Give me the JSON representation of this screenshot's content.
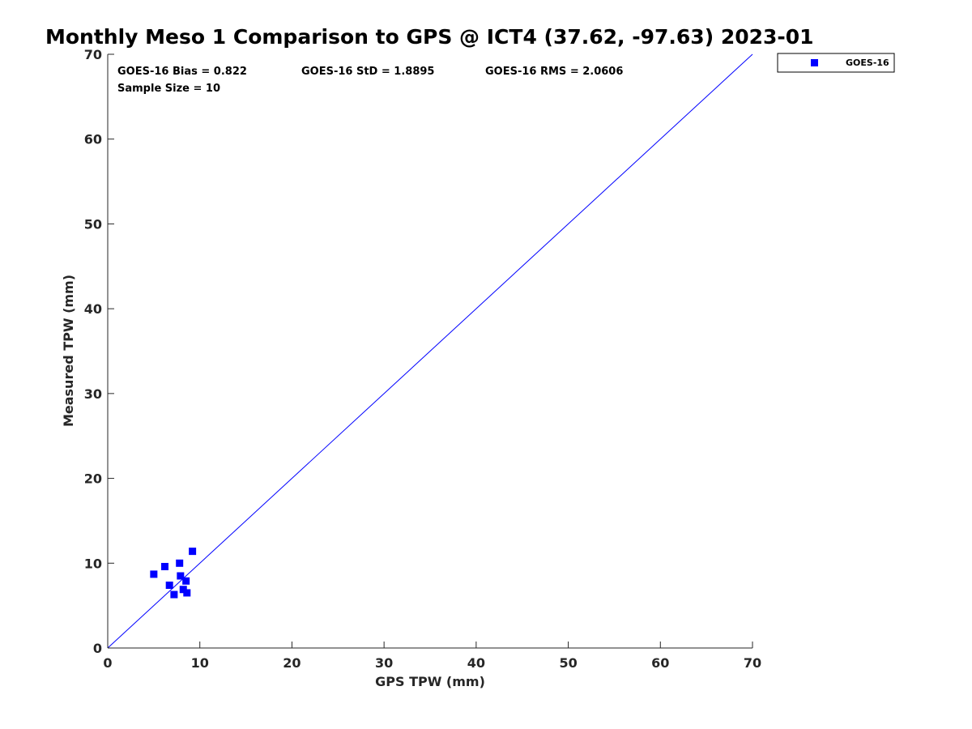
{
  "chart_data": {
    "type": "scatter",
    "title": "Monthly Meso 1 Comparison to GPS @ ICT4 (37.62, -97.63) 2023-01",
    "xlabel": "GPS TPW (mm)",
    "ylabel": "Measured TPW (mm)",
    "xlim": [
      0,
      70
    ],
    "ylim": [
      0,
      70
    ],
    "xticks": [
      "0",
      "10",
      "20",
      "30",
      "40",
      "50",
      "60",
      "70"
    ],
    "yticks": [
      "0",
      "10",
      "20",
      "30",
      "40",
      "50",
      "60",
      "70"
    ],
    "grid": false,
    "legend_position": "outside-top-right",
    "reference_line": {
      "x": [
        0,
        70
      ],
      "y": [
        0,
        70
      ],
      "color": "#0000ff"
    },
    "annotations": {
      "bias": "GOES-16 Bias = 0.822",
      "std": "GOES-16 StD = 1.8895",
      "rms": "GOES-16 RMS = 2.0606",
      "sample": "Sample Size = 10"
    },
    "series": [
      {
        "name": "GOES-16",
        "color": "#0000ff",
        "marker": "square",
        "points": [
          {
            "x": 5.0,
            "y": 8.7
          },
          {
            "x": 6.2,
            "y": 9.6
          },
          {
            "x": 6.7,
            "y": 7.4
          },
          {
            "x": 7.2,
            "y": 6.3
          },
          {
            "x": 7.8,
            "y": 10.0
          },
          {
            "x": 7.9,
            "y": 8.5
          },
          {
            "x": 8.2,
            "y": 6.9
          },
          {
            "x": 8.5,
            "y": 7.9
          },
          {
            "x": 8.6,
            "y": 6.5
          },
          {
            "x": 9.2,
            "y": 11.4
          }
        ]
      }
    ]
  }
}
